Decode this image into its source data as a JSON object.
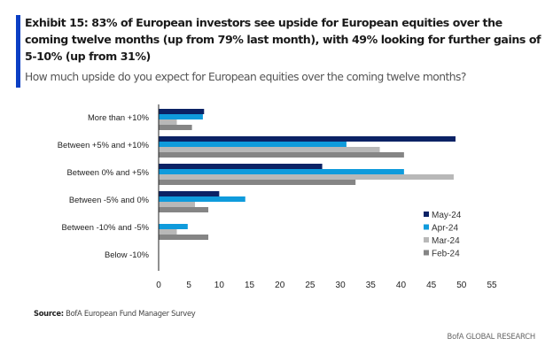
{
  "header": {
    "title": "Exhibit 15: 83% of European investors see upside for European equities over the coming twelve months (up from 79% last month), with 49% looking for further gains of 5-10% (up from 31%)",
    "subtitle": "How much upside do you expect for European equities over the coming twelve months?",
    "accent_color": "#0a3fc4"
  },
  "footer": {
    "source_label": "Source:",
    "source_text": " BofA European Fund Manager Survey",
    "brand": "BofA GLOBAL RESEARCH"
  },
  "chart_data": {
    "type": "bar",
    "orientation": "horizontal",
    "title": "How much upside do you expect for European equities over the coming twelve months?",
    "xlabel": "",
    "ylabel": "",
    "categories": [
      "More than +10%",
      "Between +5% and +10%",
      "Between 0% and +5%",
      "Between -5% and 0%",
      "Between -10% and -5%",
      "Below -10%"
    ],
    "series": [
      {
        "name": "May-24",
        "color": "#0b2265",
        "values": [
          7.5,
          49,
          27,
          10,
          0,
          0
        ]
      },
      {
        "name": "Apr-24",
        "color": "#0f9bdc",
        "values": [
          7.3,
          31,
          40.5,
          14.3,
          4.8,
          0
        ]
      },
      {
        "name": "Mar-24",
        "color": "#b8b8b8",
        "values": [
          3,
          36.5,
          48.7,
          6,
          3,
          0
        ]
      },
      {
        "name": "Feb-24",
        "color": "#858585",
        "values": [
          5.5,
          40.5,
          32.5,
          8.2,
          8.2,
          0
        ]
      }
    ],
    "xlim": [
      0,
      55
    ],
    "xticks": [
      0,
      5,
      10,
      15,
      20,
      25,
      30,
      35,
      40,
      45,
      50,
      55
    ],
    "grid": false,
    "legend_position": "bottom-right"
  }
}
